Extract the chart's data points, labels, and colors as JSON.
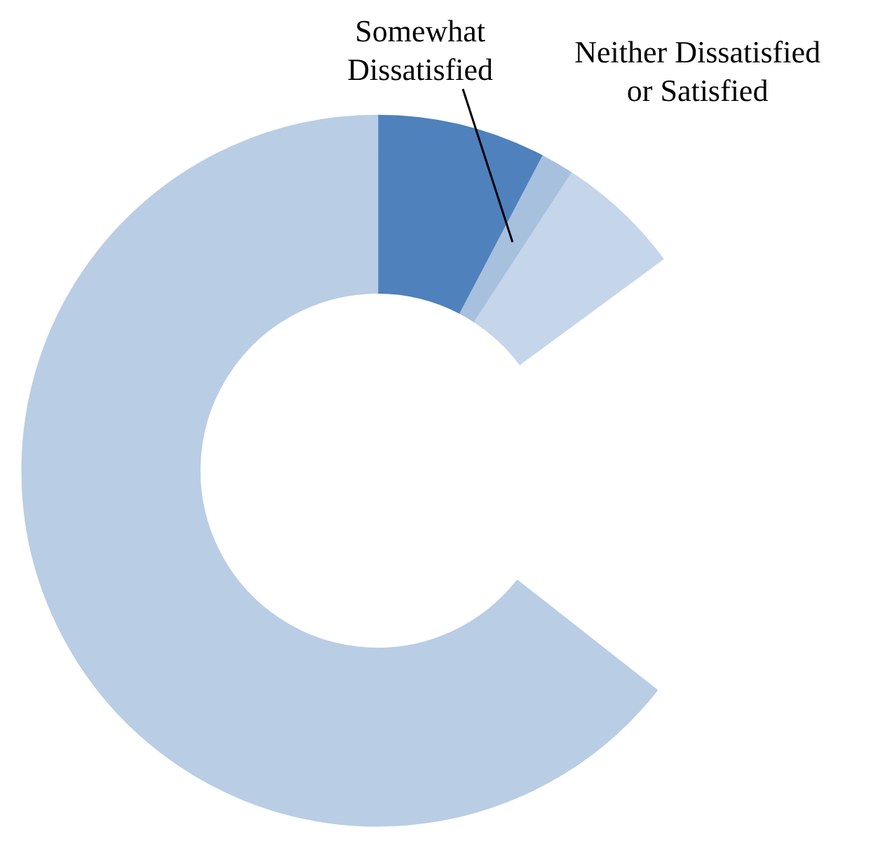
{
  "chart_data": {
    "type": "donut",
    "categories": [
      null,
      "Somewhat Dissatisfied",
      "Neither Dissatisfied or Satisfied",
      null,
      null
    ],
    "values": [
      7.7,
      1.5,
      5.7,
      20.7,
      64.4
    ],
    "colors": [
      "#4f81bd",
      "#a7c0de",
      "#c5d5ea",
      "#ffffff",
      "#b9cde5"
    ]
  }
}
